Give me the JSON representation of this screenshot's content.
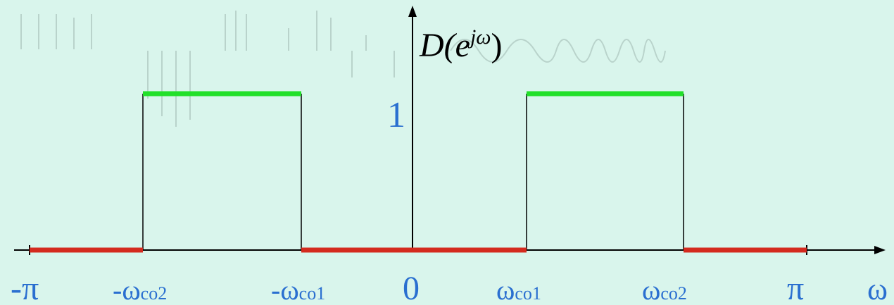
{
  "title": {
    "func": "D(e",
    "sup": "jω",
    "close": ")"
  },
  "level_label": "1",
  "x_labels": [
    {
      "main": "-π",
      "sub": ""
    },
    {
      "main": "-ω",
      "sub": "co2"
    },
    {
      "main": "-ω",
      "sub": "co1"
    },
    {
      "main": "0",
      "sub": ""
    },
    {
      "main": "ω",
      "sub": "co1"
    },
    {
      "main": "ω",
      "sub": "co2"
    },
    {
      "main": "π",
      "sub": ""
    }
  ],
  "axis_label": "ω"
}
